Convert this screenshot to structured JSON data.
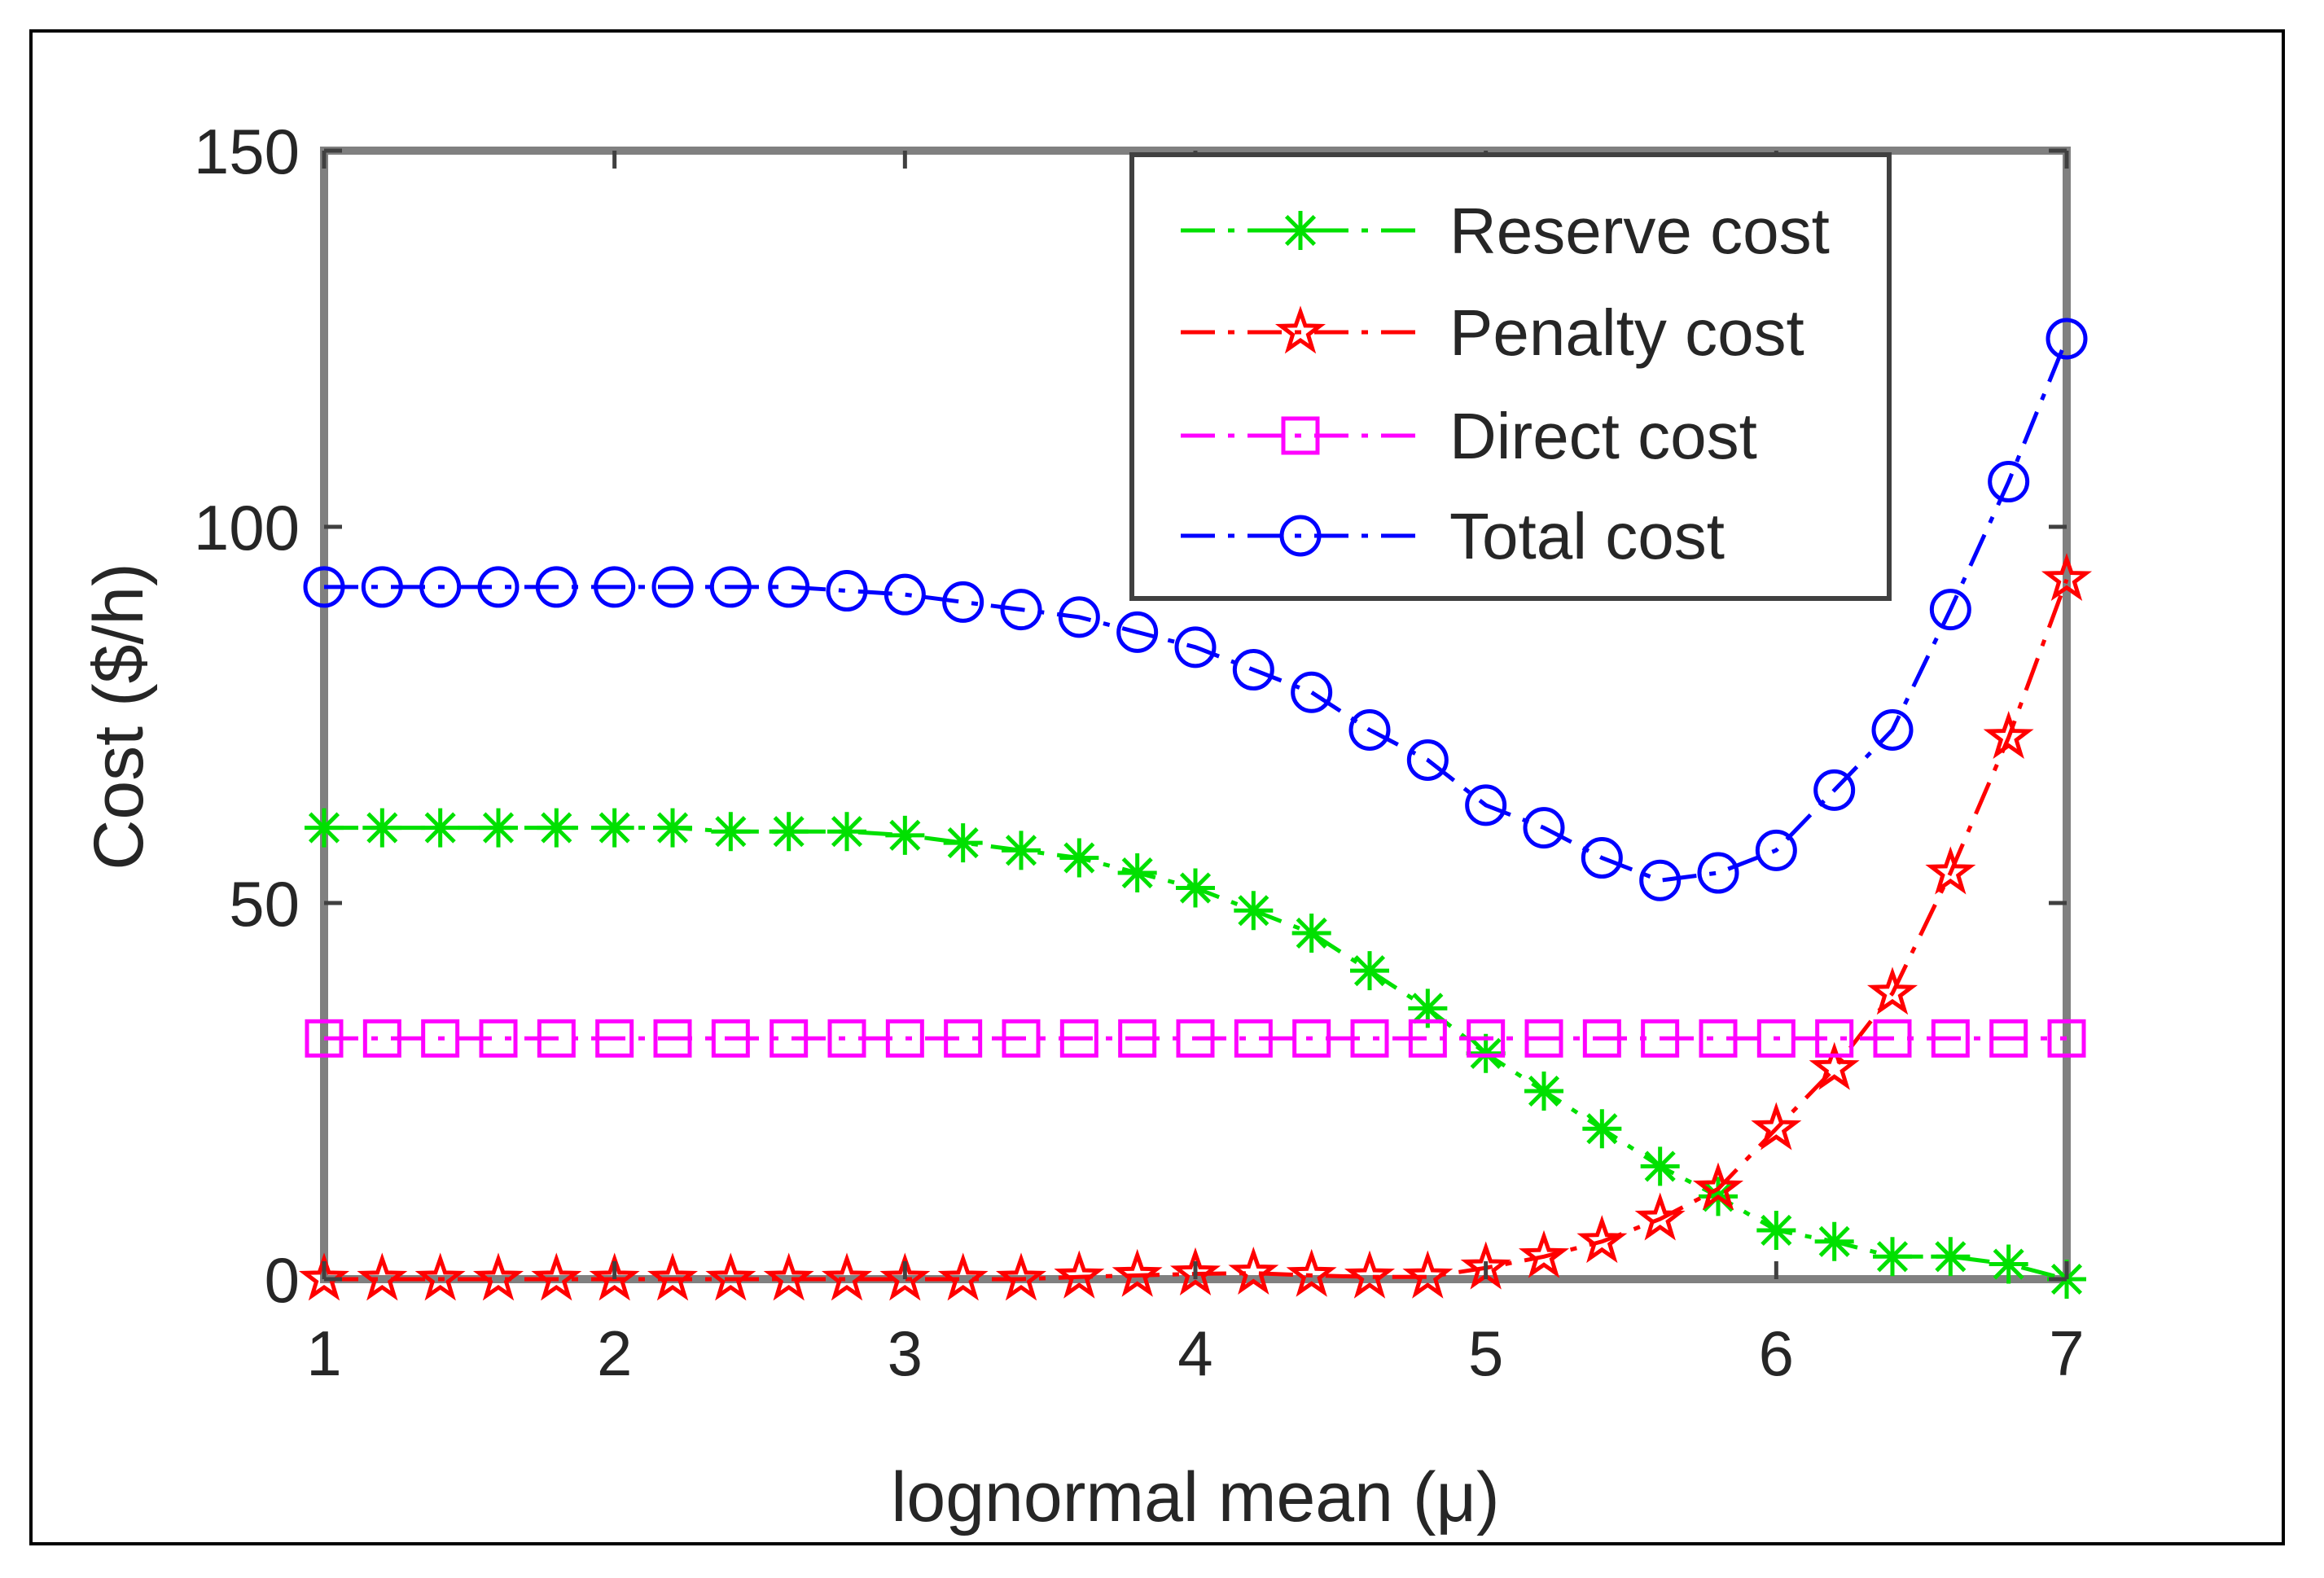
{
  "chart_data": {
    "type": "line",
    "title": "",
    "xlabel": "lognormal mean (μ)",
    "ylabel": "Cost ($/h)",
    "xlim": [
      1,
      7
    ],
    "ylim": [
      0,
      150
    ],
    "xticks": [
      1,
      2,
      3,
      4,
      5,
      6,
      7
    ],
    "yticks": [
      0,
      50,
      100,
      150
    ],
    "grid": false,
    "legend_position": "top-right",
    "x": [
      1.0,
      1.2,
      1.4,
      1.6,
      1.8,
      2.0,
      2.2,
      2.4,
      2.6,
      2.8,
      3.0,
      3.2,
      3.4,
      3.6,
      3.8,
      4.0,
      4.2,
      4.4,
      4.6,
      4.8,
      5.0,
      5.2,
      5.4,
      5.6,
      5.8,
      6.0,
      6.2,
      6.4,
      6.6,
      6.8,
      7.0
    ],
    "series": [
      {
        "name": "Reserve cost",
        "color": "#00e000",
        "marker": "asterisk",
        "values": [
          60,
          60,
          60,
          60,
          60,
          60,
          60,
          59.5,
          59.5,
          59.5,
          59,
          58,
          57,
          56,
          54,
          52,
          49,
          46,
          41,
          36,
          30,
          25,
          20,
          15,
          11,
          6.5,
          5,
          3,
          3,
          2,
          0
        ]
      },
      {
        "name": "Penalty cost",
        "color": "#ff0000",
        "marker": "pentagram",
        "values": [
          0,
          0,
          0,
          0,
          0,
          0,
          0,
          0,
          0,
          0,
          0,
          0,
          0,
          0.3,
          0.5,
          0.7,
          0.8,
          0.5,
          0.3,
          0.3,
          1.5,
          3,
          5,
          8,
          12,
          20,
          28,
          38,
          54,
          72,
          93
        ]
      },
      {
        "name": "Direct cost",
        "color": "#ff00ff",
        "marker": "square",
        "values": [
          32,
          32,
          32,
          32,
          32,
          32,
          32,
          32,
          32,
          32,
          32,
          32,
          32,
          32,
          32,
          32,
          32,
          32,
          32,
          32,
          32,
          32,
          32,
          32,
          32,
          32,
          32,
          32,
          32,
          32,
          32
        ]
      },
      {
        "name": "Total cost",
        "color": "#0000ff",
        "marker": "circle",
        "values": [
          92,
          92,
          92,
          92,
          92,
          92,
          92,
          92,
          92,
          91.5,
          91,
          90,
          89,
          88,
          86,
          84,
          81,
          78,
          73,
          69,
          63,
          60,
          56,
          53,
          54,
          57,
          65,
          73,
          89,
          106,
          125
        ]
      }
    ]
  }
}
